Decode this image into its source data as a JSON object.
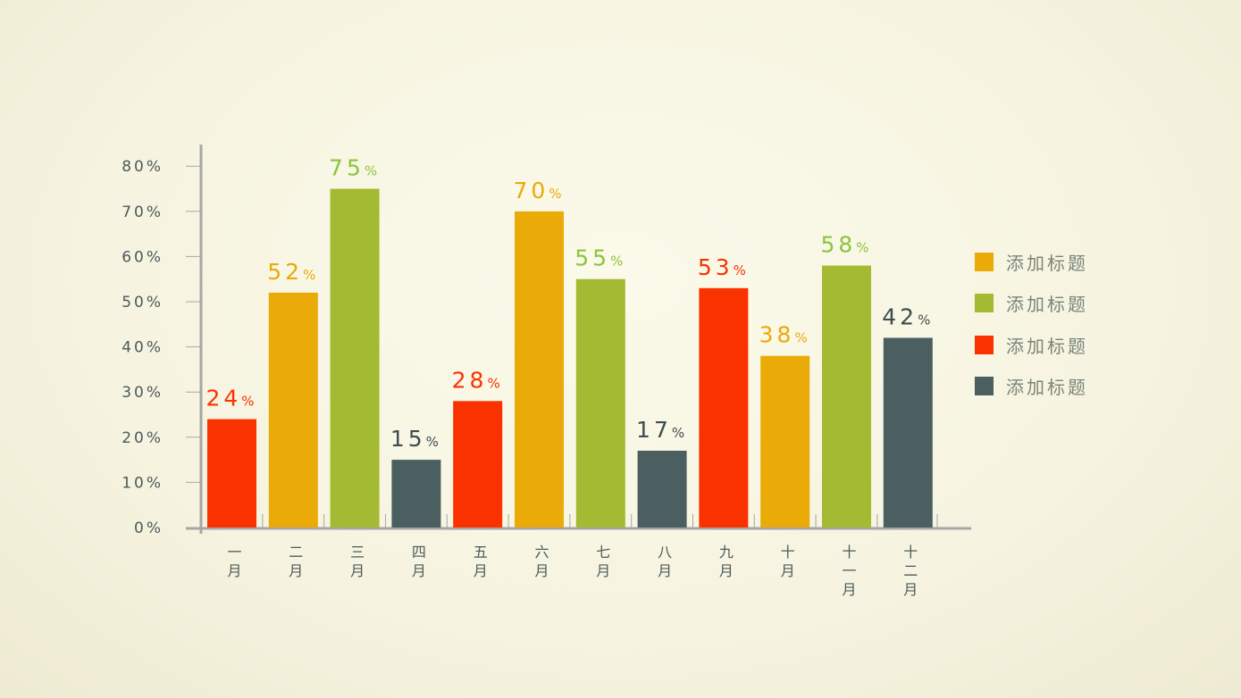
{
  "chart_data": {
    "type": "bar",
    "categories": [
      "一月",
      "二月",
      "三月",
      "四月",
      "五月",
      "六月",
      "七月",
      "八月",
      "九月",
      "十月",
      "十一月",
      "十二月"
    ],
    "values": [
      24,
      52,
      75,
      15,
      28,
      70,
      55,
      17,
      53,
      38,
      58,
      42
    ],
    "data_labels": [
      "24",
      "52",
      "75",
      "15",
      "28",
      "70",
      "55",
      "17",
      "53",
      "38",
      "58",
      "42"
    ],
    "label_unit": "%",
    "bar_colors": [
      "#fa3200",
      "#eaaa08",
      "#a3ba32",
      "#4b5e60",
      "#fa3200",
      "#eaaa08",
      "#a3ba32",
      "#4b5e60",
      "#fa3200",
      "#eaaa08",
      "#a3ba32",
      "#4b5e60"
    ],
    "label_colors": [
      "#fa3200",
      "#eaaa08",
      "#8cc43c",
      "#3e4c4e",
      "#fa3200",
      "#eaaa08",
      "#8cc43c",
      "#3e4c4e",
      "#fa3200",
      "#eaaa08",
      "#8cc43c",
      "#3e4c4e"
    ],
    "yticks": [
      "0%",
      "10%",
      "20%",
      "30%",
      "40%",
      "50%",
      "60%",
      "70%",
      "80%"
    ],
    "ylim": [
      0,
      80
    ],
    "grid": false,
    "legend_position": "right",
    "legend": [
      {
        "label": "添加标题",
        "color": "#eaaa08"
      },
      {
        "label": "添加标题",
        "color": "#a3ba32"
      },
      {
        "label": "添加标题",
        "color": "#fa3200"
      },
      {
        "label": "添加标题",
        "color": "#4b5e60"
      }
    ]
  }
}
